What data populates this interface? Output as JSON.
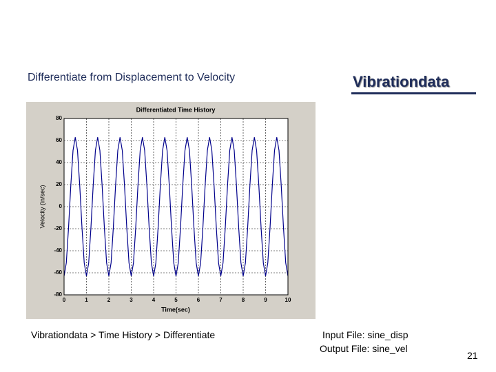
{
  "slide": {
    "title": "Differentiate from Displacement to Velocity",
    "brand": "Vibrationdata",
    "caption": "Vibrationdata > Time History > Differentiate",
    "input_file": "Input File:  sine_disp",
    "output_file": "Output File: sine_vel",
    "page_number": "21"
  },
  "chart_data": {
    "type": "line",
    "title": "Differentiated Time History",
    "xlabel": "Time(sec)",
    "ylabel": "Velocity (in/sec)",
    "color": "#00008b",
    "grid": true,
    "xlim": [
      0,
      10
    ],
    "ylim": [
      -80,
      80
    ],
    "xticks": [
      0,
      1,
      2,
      3,
      4,
      5,
      6,
      7,
      8,
      9,
      10
    ],
    "yticks": [
      80,
      60,
      40,
      20,
      0,
      -20,
      -40,
      -60,
      -80
    ],
    "x": [
      0,
      0.1,
      0.2,
      0.3,
      0.4,
      0.5,
      0.6,
      0.7,
      0.8,
      0.9,
      1,
      1.1,
      1.2,
      1.3,
      1.4,
      1.5,
      1.6,
      1.7,
      1.8,
      1.9,
      2,
      2.1,
      2.2,
      2.3,
      2.4,
      2.5,
      2.6,
      2.7,
      2.8,
      2.9,
      3,
      3.1,
      3.2,
      3.3,
      3.4,
      3.5,
      3.6,
      3.7,
      3.8,
      3.9,
      4,
      4.1,
      4.2,
      4.3,
      4.4,
      4.5,
      4.6,
      4.7,
      4.8,
      4.9,
      5,
      5.1,
      5.2,
      5.3,
      5.4,
      5.5,
      5.6,
      5.7,
      5.8,
      5.9,
      6,
      6.1,
      6.2,
      6.3,
      6.4,
      6.5,
      6.6,
      6.7,
      6.8,
      6.9,
      7,
      7.1,
      7.2,
      7.3,
      7.4,
      7.5,
      7.6,
      7.7,
      7.8,
      7.9,
      8,
      8.1,
      8.2,
      8.3,
      8.4,
      8.5,
      8.6,
      8.7,
      8.8,
      8.9,
      9,
      9.1,
      9.2,
      9.3,
      9.4,
      9.5,
      9.6,
      9.7,
      9.8,
      9.9,
      10
    ],
    "values": [
      -63,
      -51,
      -19,
      19,
      51,
      63,
      51,
      19,
      -19,
      -51,
      -63,
      -51,
      -19,
      19,
      51,
      63,
      51,
      19,
      -19,
      -51,
      -63,
      -51,
      -19,
      19,
      51,
      63,
      51,
      19,
      -19,
      -51,
      -63,
      -51,
      -19,
      19,
      51,
      63,
      51,
      19,
      -19,
      -51,
      -63,
      -51,
      -19,
      19,
      51,
      63,
      51,
      19,
      -19,
      -51,
      -63,
      -51,
      -19,
      19,
      51,
      63,
      51,
      19,
      -19,
      -51,
      -63,
      -51,
      -19,
      19,
      51,
      63,
      51,
      19,
      -19,
      -51,
      -63,
      -51,
      -19,
      19,
      51,
      63,
      51,
      19,
      -19,
      -51,
      -63,
      -51,
      -19,
      19,
      51,
      63,
      51,
      19,
      -19,
      -51,
      -63,
      -51,
      -19,
      19,
      51,
      63,
      51,
      19,
      -19,
      -51,
      -63
    ]
  }
}
